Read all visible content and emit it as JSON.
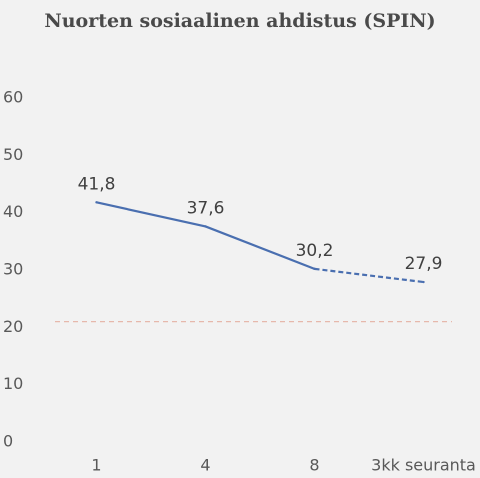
{
  "chart_data": {
    "type": "line",
    "title": "Nuorten sosiaalinen ahdistus (SPIN)",
    "categories": [
      "1",
      "4",
      "8",
      "3kk seuranta"
    ],
    "series": [
      {
        "color": "#4a6fb0",
        "values": [
          41.8,
          37.6,
          30.2,
          27.9
        ],
        "value_labels": [
          "41,8",
          "37,6",
          "30,2",
          "27,9"
        ],
        "dashed_segments": [
          2
        ]
      }
    ],
    "ylim": [
      0,
      60
    ],
    "yticks": [
      0,
      10,
      20,
      30,
      40,
      50,
      60
    ],
    "grid": false,
    "reference_line": {
      "value": 21,
      "color": "#e6b8ac",
      "dashed": true
    }
  }
}
